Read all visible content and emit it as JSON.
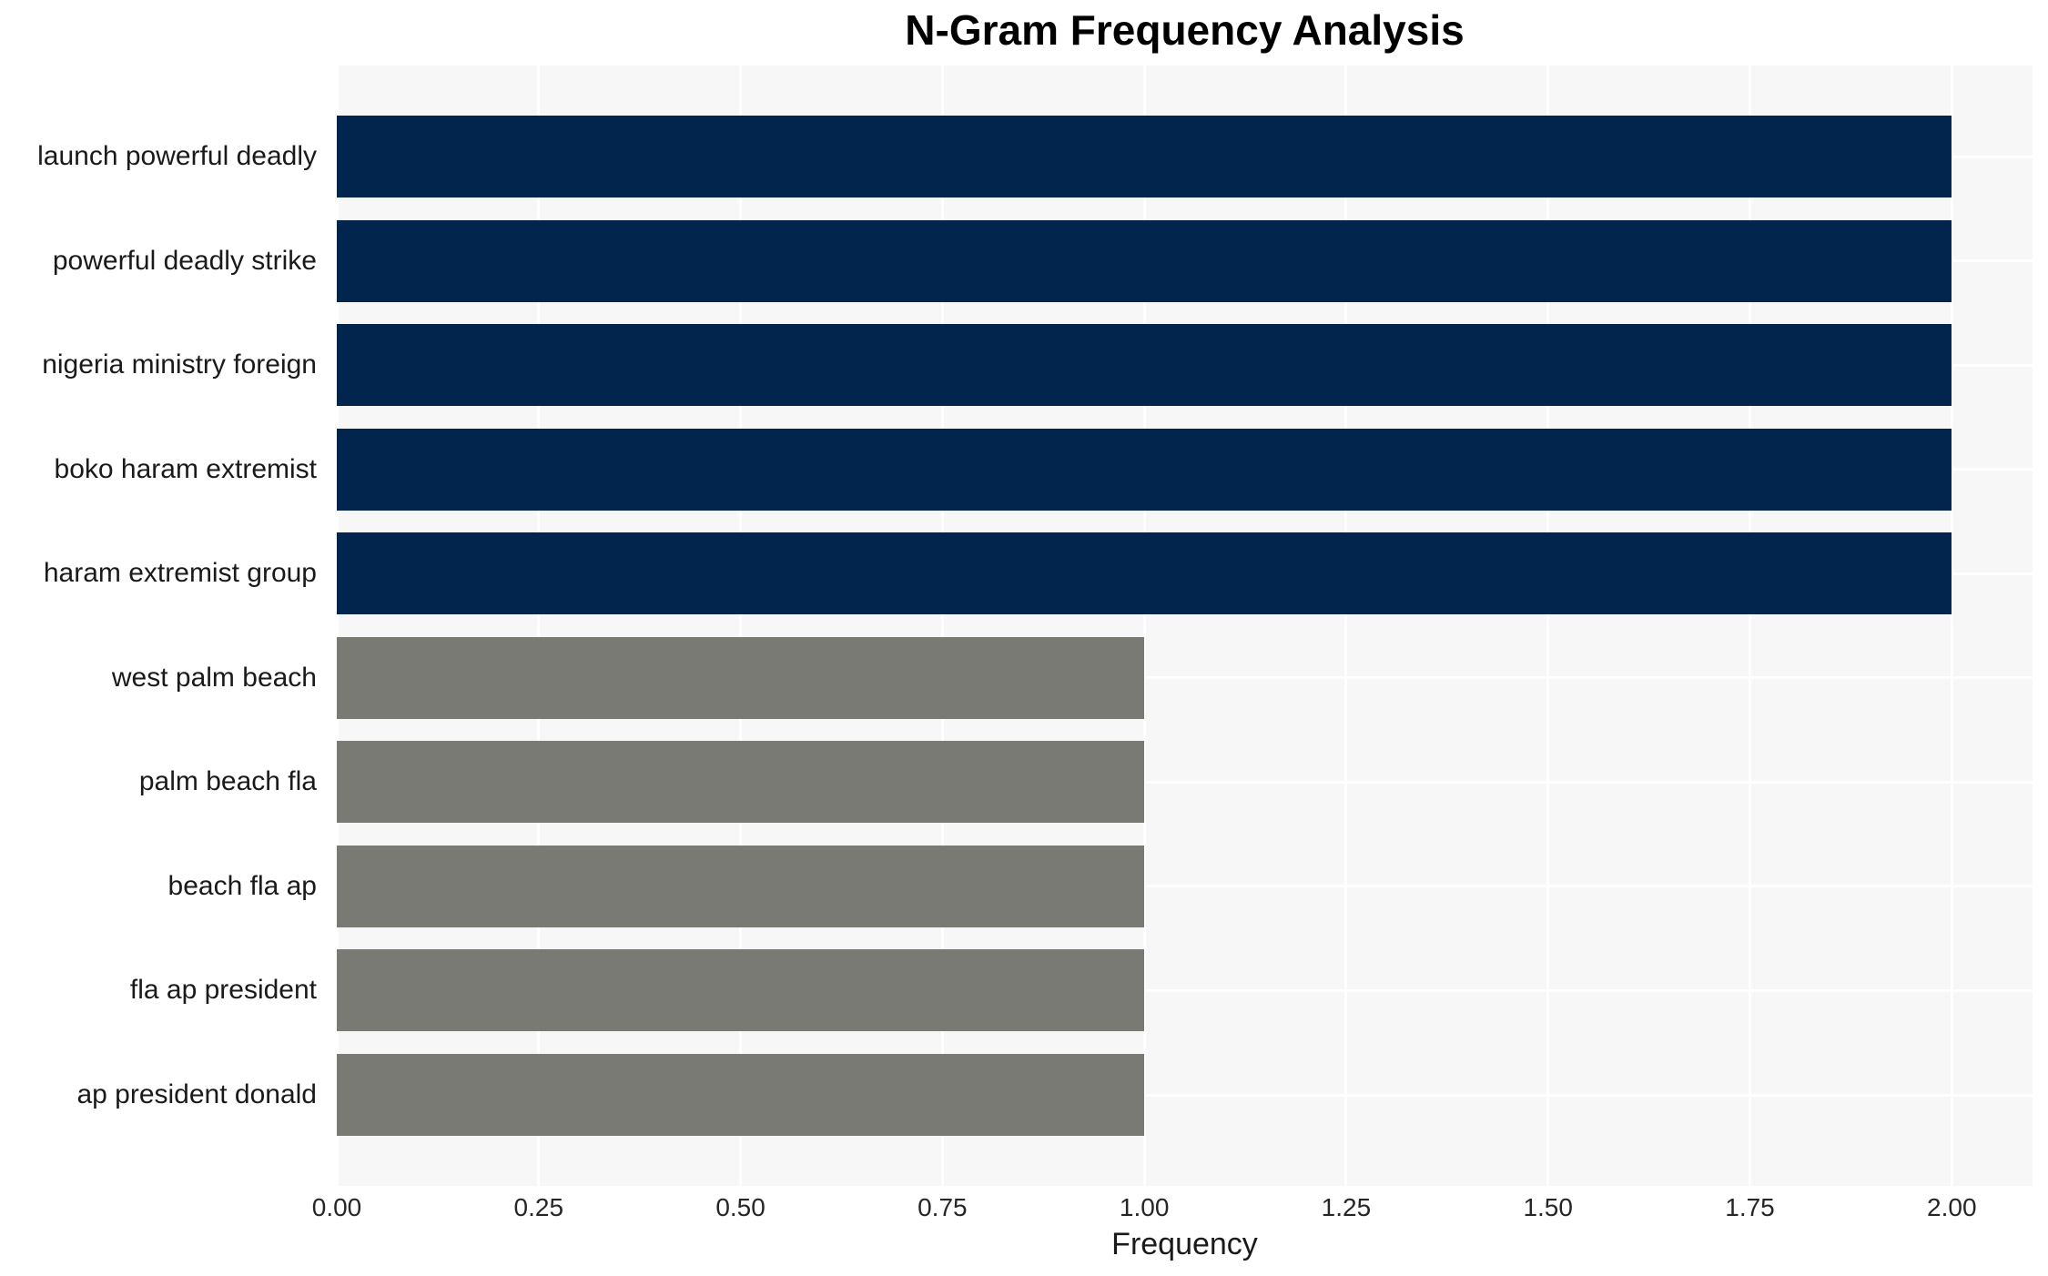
{
  "chart_data": {
    "type": "bar",
    "orientation": "horizontal",
    "title": "N-Gram Frequency Analysis",
    "xlabel": "Frequency",
    "ylabel": "",
    "categories": [
      "launch powerful deadly",
      "powerful deadly strike",
      "nigeria ministry foreign",
      "boko haram extremist",
      "haram extremist group",
      "west palm beach",
      "palm beach fla",
      "beach fla ap",
      "fla ap president",
      "ap president donald"
    ],
    "values": [
      2,
      2,
      2,
      2,
      2,
      1,
      1,
      1,
      1,
      1
    ],
    "bar_colors": [
      "#02254e",
      "#02254e",
      "#02254e",
      "#02254e",
      "#02254e",
      "#7a7a75",
      "#7a7a75",
      "#7a7a75",
      "#7a7a75",
      "#7a7a75"
    ],
    "xlim": [
      0,
      2.1
    ],
    "x_tick_labels": [
      "0.00",
      "0.25",
      "0.50",
      "0.75",
      "1.00",
      "1.25",
      "1.50",
      "1.75",
      "2.00"
    ],
    "grid": true,
    "legend_position": "none",
    "plot_background_color": "#f7f7f7",
    "grid_color": "#ffffff"
  }
}
